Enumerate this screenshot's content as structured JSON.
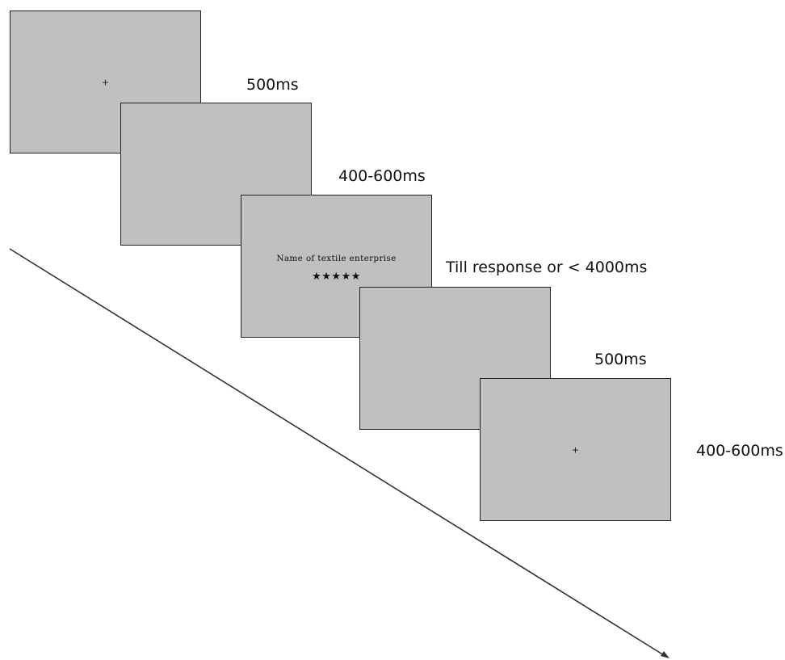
{
  "screens": [
    {
      "content": "+"
    },
    {
      "content": ""
    },
    {
      "stimulus_text": "Name of textile enterprise",
      "stars": "★★★★★"
    },
    {
      "content": ""
    },
    {
      "content": "+"
    }
  ],
  "timings": [
    "500ms",
    "400-600ms",
    "Till response or < 4000ms",
    "500ms",
    "400-600ms"
  ],
  "colors": {
    "screen_fill": "#c0c0c0",
    "screen_border": "#222222",
    "axis_line": "#333333",
    "text": "#111111"
  },
  "icons": [
    "fixation-cross-icon",
    "star-rating-icon",
    "time-axis-arrow-icon"
  ]
}
